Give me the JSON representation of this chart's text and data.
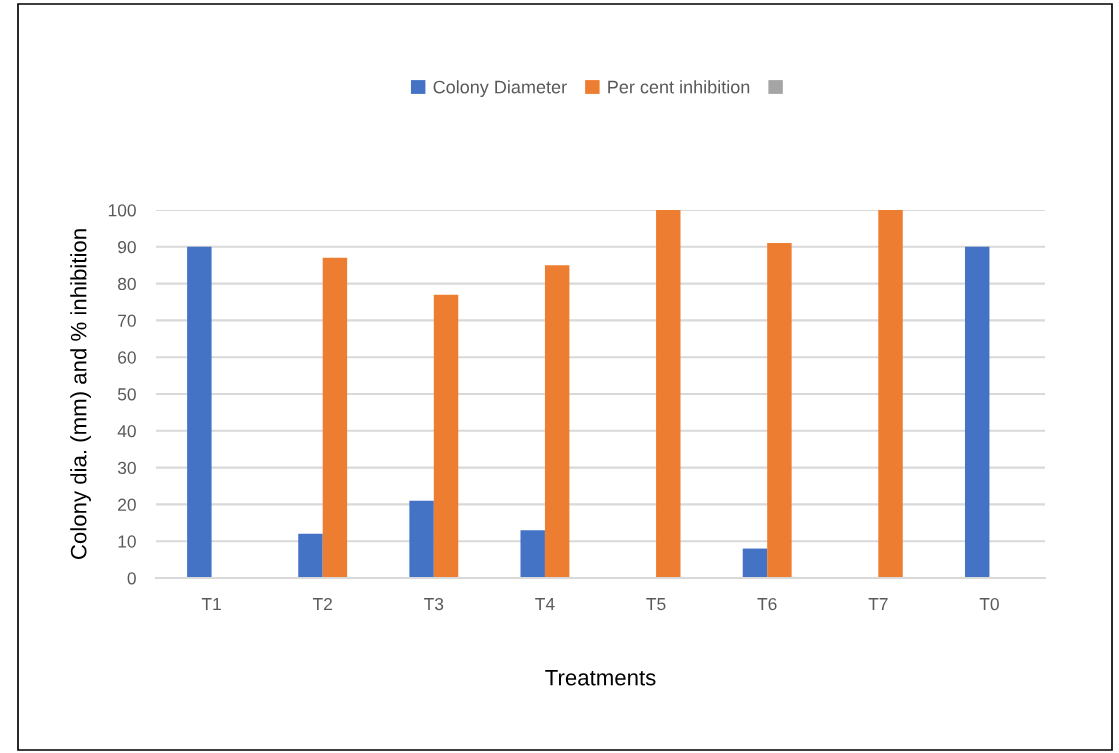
{
  "chart_data": {
    "type": "bar",
    "categories": [
      "T1",
      "T2",
      "T3",
      "T4",
      "T5",
      "T6",
      "T7",
      "T0"
    ],
    "series": [
      {
        "name": "Colony Diameter",
        "color": "#4472c4",
        "values": [
          90,
          12,
          21,
          13,
          0,
          8,
          0,
          90
        ]
      },
      {
        "name": "Per cent inhibition",
        "color": "#ed7d31",
        "values": [
          0,
          87,
          77,
          85,
          100,
          91,
          100,
          0
        ]
      },
      {
        "color": "#a5a5a5",
        "values": [
          null,
          null,
          null,
          null,
          null,
          null,
          null,
          null
        ]
      }
    ],
    "xlabel": "Treatments",
    "ylabel": "Colony dia. (mm) and % inhibition",
    "ylim": [
      0,
      100
    ],
    "yticks": [
      0,
      10,
      20,
      30,
      40,
      50,
      60,
      70,
      80,
      90,
      100
    ],
    "grid": "y",
    "legend": "top"
  }
}
